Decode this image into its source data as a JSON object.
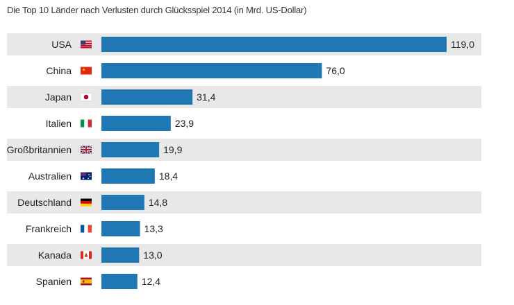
{
  "chart_data": {
    "type": "bar",
    "orientation": "horizontal",
    "title": "Die Top 10 Länder nach Verlusten durch Glücksspiel 2014 (in Mrd. US-Dollar)",
    "categories": [
      "USA",
      "China",
      "Japan",
      "Italien",
      "Großbritannien",
      "Australien",
      "Deutschland",
      "Frankreich",
      "Kanada",
      "Spanien"
    ],
    "values": [
      119.0,
      76.0,
      31.4,
      23.9,
      19.9,
      18.4,
      14.8,
      13.3,
      13.0,
      12.4
    ],
    "value_labels": [
      "119,0",
      "76,0",
      "31,4",
      "23,9",
      "19,9",
      "18,4",
      "14,8",
      "13,3",
      "13,0",
      "12,4"
    ],
    "flags": [
      "us-flag-icon",
      "cn-flag-icon",
      "jp-flag-icon",
      "it-flag-icon",
      "gb-flag-icon",
      "au-flag-icon",
      "de-flag-icon",
      "fr-flag-icon",
      "ca-flag-icon",
      "es-flag-icon"
    ],
    "xlim": [
      0,
      119
    ],
    "grid": false,
    "row_banding": true,
    "colors": {
      "bar": "#1f77b4",
      "band": "#e8e8e8",
      "text": "#222222"
    }
  }
}
